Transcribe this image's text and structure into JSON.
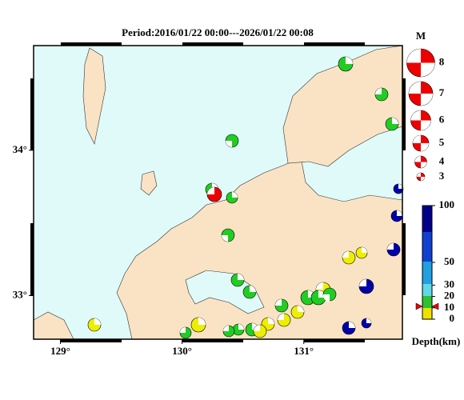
{
  "map": {
    "title": "Period:2016/01/22 00:00---2026/01/22 00:08",
    "lonlim": [
      128.78,
      131.81
    ],
    "latlim": [
      32.7,
      34.72
    ],
    "lon_ticks": [
      {
        "value": 129,
        "label": "129°"
      },
      {
        "value": 130,
        "label": "130°"
      },
      {
        "value": 131,
        "label": "131°"
      }
    ],
    "lat_ticks": [
      {
        "value": 34,
        "label": "34°"
      },
      {
        "value": 33,
        "label": "33°"
      }
    ],
    "magnitude_legend": {
      "title": "M",
      "values": [
        8,
        7,
        6,
        5,
        4,
        3
      ]
    },
    "depth_scale": {
      "values": [
        100,
        50,
        30,
        20,
        10,
        0
      ],
      "label": "Depth(km)"
    }
  }
}
